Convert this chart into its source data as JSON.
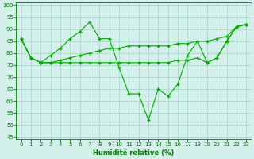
{
  "xlabel": "Humidité relative (%)",
  "background_color": "#d4f0eb",
  "grid_color": "#a8d8cc",
  "line_color": "#00aa00",
  "xlim": [
    -0.5,
    23.5
  ],
  "ylim": [
    44,
    101
  ],
  "yticks": [
    45,
    50,
    55,
    60,
    65,
    70,
    75,
    80,
    85,
    90,
    95,
    100
  ],
  "xticks": [
    0,
    1,
    2,
    3,
    4,
    5,
    6,
    7,
    8,
    9,
    10,
    11,
    12,
    13,
    14,
    15,
    16,
    17,
    18,
    19,
    20,
    21,
    22,
    23
  ],
  "line1": [
    86,
    78,
    76,
    79,
    82,
    86,
    89,
    93,
    86,
    86,
    74,
    63,
    63,
    52,
    65,
    62,
    67,
    79,
    85,
    76,
    78,
    85,
    91,
    92
  ],
  "line2": [
    86,
    78,
    76,
    76,
    76,
    76,
    76,
    76,
    76,
    76,
    76,
    76,
    76,
    76,
    76,
    76,
    77,
    77,
    78,
    76,
    78,
    85,
    91,
    92
  ],
  "line3": [
    86,
    78,
    76,
    76,
    77,
    78,
    79,
    80,
    81,
    82,
    82,
    83,
    83,
    83,
    83,
    83,
    84,
    84,
    85,
    85,
    86,
    87,
    91,
    92
  ],
  "xlabel_fontsize": 6.0,
  "tick_fontsize": 5.0
}
